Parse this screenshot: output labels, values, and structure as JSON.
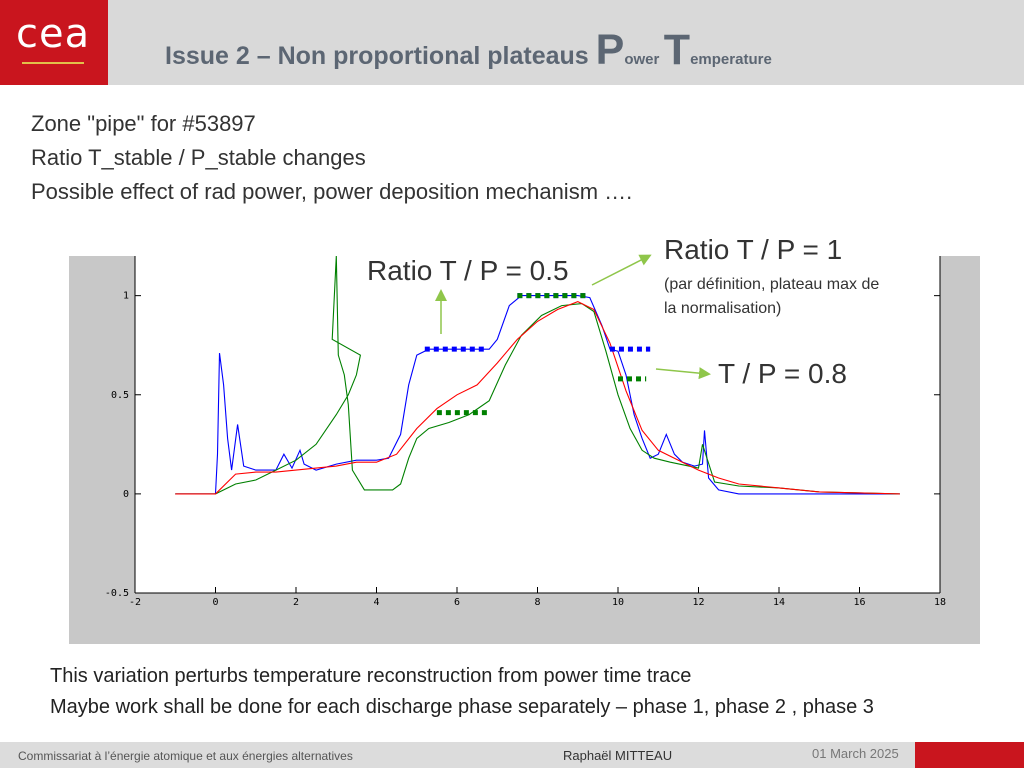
{
  "header": {
    "logo_text": "cea",
    "title_main": "Issue 2  – Non proportional plateaus ",
    "title_p": "P",
    "title_ower": "ower",
    "title_t": "T",
    "title_emperature": "emperature"
  },
  "bullets": [
    "Zone \"pipe\" for #53897",
    "Ratio T_stable / P_stable changes",
    "Possible effect of rad power, power deposition mechanism …."
  ],
  "annotations": {
    "ratio_05": "Ratio T / P = 0.5",
    "ratio_1": "Ratio T / P = 1",
    "ratio_1_sub1": "(par définition, plateau max de",
    "ratio_1_sub2": "la normalisation)",
    "tp_08": "T / P = 0.8"
  },
  "chart_data": {
    "type": "line",
    "xlim": [
      -2,
      18
    ],
    "ylim": [
      -0.5,
      1.2
    ],
    "x_ticks": [
      "-2",
      "0",
      "2",
      "4",
      "6",
      "8",
      "10",
      "12",
      "14",
      "16",
      "18"
    ],
    "y_ticks": [
      "-0.5",
      "0",
      "0.5",
      "1"
    ],
    "grid": false,
    "series": [
      {
        "color": "#0000ff",
        "points": [
          [
            -1,
            0
          ],
          [
            0,
            0
          ],
          [
            0.05,
            0.2
          ],
          [
            0.1,
            0.71
          ],
          [
            0.2,
            0.55
          ],
          [
            0.3,
            0.28
          ],
          [
            0.4,
            0.12
          ],
          [
            0.55,
            0.35
          ],
          [
            0.7,
            0.14
          ],
          [
            1,
            0.12
          ],
          [
            1.5,
            0.12
          ],
          [
            1.7,
            0.2
          ],
          [
            1.9,
            0.13
          ],
          [
            2.1,
            0.22
          ],
          [
            2.2,
            0.15
          ],
          [
            2.5,
            0.12
          ],
          [
            3,
            0.15
          ],
          [
            3.5,
            0.17
          ],
          [
            4,
            0.17
          ],
          [
            4.3,
            0.18
          ],
          [
            4.6,
            0.3
          ],
          [
            4.8,
            0.55
          ],
          [
            5,
            0.7
          ],
          [
            5.3,
            0.73
          ],
          [
            6,
            0.73
          ],
          [
            6.8,
            0.73
          ],
          [
            7,
            0.78
          ],
          [
            7.3,
            0.95
          ],
          [
            7.6,
            1
          ],
          [
            8.3,
            1
          ],
          [
            9,
            1
          ],
          [
            9.3,
            0.99
          ],
          [
            9.6,
            0.85
          ],
          [
            9.8,
            0.73
          ],
          [
            10,
            0.72
          ],
          [
            10.2,
            0.6
          ],
          [
            10.4,
            0.4
          ],
          [
            10.6,
            0.28
          ],
          [
            10.8,
            0.18
          ],
          [
            11,
            0.2
          ],
          [
            11.2,
            0.3
          ],
          [
            11.4,
            0.2
          ],
          [
            11.6,
            0.16
          ],
          [
            11.9,
            0.14
          ],
          [
            12.1,
            0.15
          ],
          [
            12.15,
            0.32
          ],
          [
            12.25,
            0.08
          ],
          [
            12.5,
            0.02
          ],
          [
            13,
            0
          ],
          [
            17,
            0
          ]
        ]
      },
      {
        "color": "#008000",
        "points": [
          [
            -1,
            0
          ],
          [
            0,
            0
          ],
          [
            0.5,
            0.05
          ],
          [
            1,
            0.07
          ],
          [
            1.5,
            0.12
          ],
          [
            2,
            0.17
          ],
          [
            2.5,
            0.25
          ],
          [
            3,
            0.4
          ],
          [
            3.3,
            0.5
          ],
          [
            3.5,
            0.6
          ],
          [
            3.6,
            0.7
          ],
          [
            2.9,
            0.78
          ],
          [
            3.0,
            1.2
          ],
          [
            3.05,
            0.7
          ],
          [
            3.2,
            0.6
          ],
          [
            3.3,
            0.45
          ],
          [
            3.4,
            0.12
          ],
          [
            3.7,
            0.02
          ],
          [
            4,
            0.02
          ],
          [
            4.4,
            0.02
          ],
          [
            4.6,
            0.05
          ],
          [
            4.8,
            0.18
          ],
          [
            5,
            0.28
          ],
          [
            5.3,
            0.33
          ],
          [
            5.8,
            0.36
          ],
          [
            6.3,
            0.4
          ],
          [
            6.8,
            0.47
          ],
          [
            7.2,
            0.65
          ],
          [
            7.6,
            0.8
          ],
          [
            8.1,
            0.9
          ],
          [
            8.6,
            0.95
          ],
          [
            9.1,
            0.96
          ],
          [
            9.4,
            0.92
          ],
          [
            9.7,
            0.72
          ],
          [
            10,
            0.5
          ],
          [
            10.3,
            0.33
          ],
          [
            10.6,
            0.22
          ],
          [
            10.9,
            0.18
          ],
          [
            11.3,
            0.16
          ],
          [
            12,
            0.13
          ],
          [
            12.1,
            0.25
          ],
          [
            12.4,
            0.06
          ],
          [
            13,
            0.04
          ],
          [
            14,
            0.03
          ],
          [
            15,
            0.01
          ],
          [
            17,
            0
          ]
        ]
      },
      {
        "color": "#ff0000",
        "points": [
          [
            -1,
            0
          ],
          [
            0,
            0
          ],
          [
            0.5,
            0.1
          ],
          [
            1,
            0.11
          ],
          [
            1.5,
            0.11
          ],
          [
            2,
            0.12
          ],
          [
            2.5,
            0.13
          ],
          [
            3,
            0.14
          ],
          [
            3.5,
            0.16
          ],
          [
            4,
            0.16
          ],
          [
            4.5,
            0.2
          ],
          [
            5,
            0.33
          ],
          [
            5.5,
            0.43
          ],
          [
            6,
            0.5
          ],
          [
            6.5,
            0.55
          ],
          [
            7,
            0.66
          ],
          [
            7.5,
            0.78
          ],
          [
            8,
            0.87
          ],
          [
            8.5,
            0.93
          ],
          [
            9,
            0.97
          ],
          [
            9.4,
            0.93
          ],
          [
            9.8,
            0.76
          ],
          [
            10.2,
            0.52
          ],
          [
            10.6,
            0.32
          ],
          [
            11,
            0.22
          ],
          [
            11.5,
            0.17
          ],
          [
            12,
            0.12
          ],
          [
            12.5,
            0.08
          ],
          [
            13,
            0.05
          ],
          [
            14,
            0.03
          ],
          [
            15,
            0.01
          ],
          [
            17,
            0
          ]
        ]
      }
    ],
    "markers": [
      {
        "color": "#0000ff",
        "x_range": [
          5.2,
          6.7
        ],
        "y": 0.73
      },
      {
        "color": "#0000ff",
        "x_range": [
          7.5,
          9.2
        ],
        "y": 1.0
      },
      {
        "color": "#0000ff",
        "x_range": [
          9.8,
          10.8
        ],
        "y": 0.73
      },
      {
        "color": "#008000",
        "x_range": [
          5.5,
          6.8
        ],
        "y": 0.41
      },
      {
        "color": "#008000",
        "x_range": [
          7.5,
          9.2
        ],
        "y": 1.0
      },
      {
        "color": "#008000",
        "x_range": [
          10.0,
          10.7
        ],
        "y": 0.58
      }
    ]
  },
  "bottom": [
    "This variation perturbs temperature reconstruction from power time trace",
    "Maybe work shall be done for each discharge phase separately – phase 1, phase 2 , phase 3"
  ],
  "footer": {
    "org": "Commissariat à l’énergie atomique et aux énergies alternatives",
    "author": "Raphaël MITTEAU",
    "date": "01 March 2025"
  }
}
